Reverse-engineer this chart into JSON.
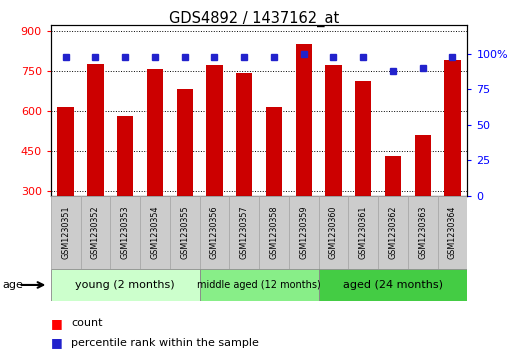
{
  "title": "GDS4892 / 1437162_at",
  "samples": [
    "GSM1230351",
    "GSM1230352",
    "GSM1230353",
    "GSM1230354",
    "GSM1230355",
    "GSM1230356",
    "GSM1230357",
    "GSM1230358",
    "GSM1230359",
    "GSM1230360",
    "GSM1230361",
    "GSM1230362",
    "GSM1230363",
    "GSM1230364"
  ],
  "counts": [
    615,
    775,
    580,
    755,
    680,
    770,
    740,
    615,
    850,
    770,
    710,
    430,
    510,
    790
  ],
  "percentiles": [
    98,
    98,
    98,
    98,
    98,
    98,
    98,
    98,
    100,
    98,
    98,
    88,
    90,
    98
  ],
  "ylim_left": [
    280,
    920
  ],
  "yticks_left": [
    300,
    450,
    600,
    750,
    900
  ],
  "ylim_right": [
    0,
    120
  ],
  "yticks_right": [
    0,
    25,
    50,
    75,
    100
  ],
  "bar_color": "#cc0000",
  "dot_color": "#2222cc",
  "bar_width": 0.55,
  "groups": [
    {
      "label": "young (2 months)",
      "start": 0,
      "end": 5,
      "color": "#ccffcc"
    },
    {
      "label": "middle aged (12 months)",
      "start": 5,
      "end": 9,
      "color": "#88ee88"
    },
    {
      "label": "aged (24 months)",
      "start": 9,
      "end": 14,
      "color": "#44cc44"
    }
  ],
  "age_label": "age",
  "legend_count_label": "count",
  "legend_percentile_label": "percentile rank within the sample",
  "sample_box_color": "#cccccc"
}
